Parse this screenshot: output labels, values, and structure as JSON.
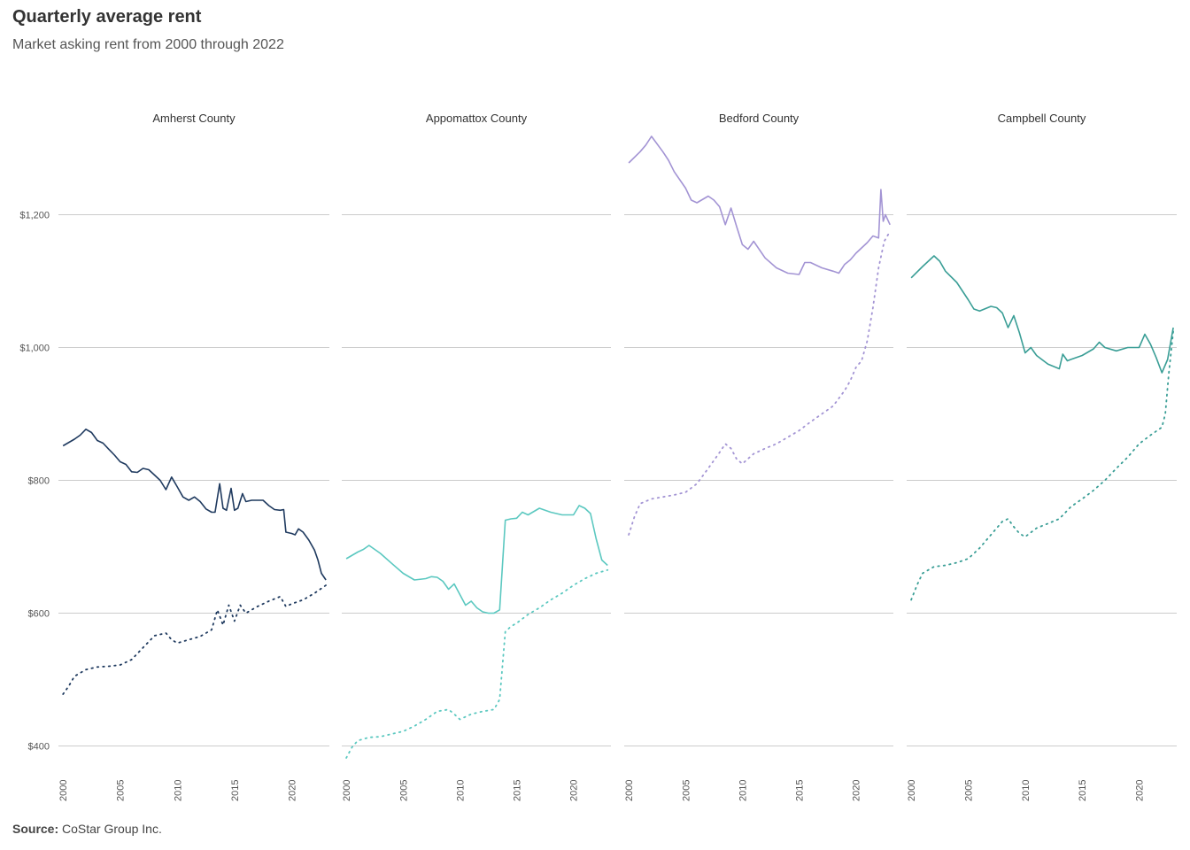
{
  "header": {
    "title": "Quarterly average rent",
    "subtitle": "Market asking rent from 2000 through 2022"
  },
  "footer": {
    "source_label": "Source:",
    "source_text": "CoStar Group Inc."
  },
  "chart_data": {
    "type": "line",
    "title": "Quarterly average rent",
    "subtitle": "Market asking rent from 2000 through 2022",
    "ylim": [
      370,
      1330
    ],
    "yticks": [
      400,
      600,
      800,
      1000,
      1200
    ],
    "ytick_labels": [
      "$400",
      "$600",
      "$800",
      "$1,000",
      "$1,200"
    ],
    "xlim": [
      1999.6,
      2023.3
    ],
    "xticks": [
      2000,
      2005,
      2010,
      2015,
      2020
    ],
    "xtick_labels": [
      "2000",
      "2005",
      "2010",
      "2015",
      "2020"
    ],
    "grid": true,
    "line_styles": [
      "solid",
      "dotted"
    ],
    "panels": [
      {
        "name": "Amherst County",
        "color": "#1f3a5f",
        "series": [
          {
            "style": "solid",
            "x": [
              2000,
              2001,
              2001.5,
              2002,
              2002.5,
              2003,
              2003.5,
              2004,
              2004.5,
              2005,
              2005.5,
              2006,
              2006.5,
              2007,
              2007.5,
              2008,
              2008.5,
              2009,
              2009.5,
              2010,
              2010.5,
              2011,
              2011.5,
              2012,
              2012.5,
              2013,
              2013.3,
              2013.7,
              2014,
              2014.3,
              2014.7,
              2015,
              2015.3,
              2015.7,
              2016,
              2016.5,
              2017,
              2017.5,
              2018,
              2018.5,
              2019,
              2019.3,
              2019.5,
              2020,
              2020.3,
              2020.6,
              2021,
              2021.5,
              2022,
              2022.3,
              2022.6,
              2023
            ],
            "y": [
              852,
              862,
              868,
              877,
              872,
              860,
              856,
              847,
              838,
              828,
              824,
              813,
              812,
              818,
              816,
              808,
              800,
              786,
              805,
              790,
              775,
              770,
              775,
              768,
              757,
              752,
              752,
              795,
              758,
              755,
              788,
              755,
              758,
              780,
              768,
              770,
              770,
              770,
              762,
              756,
              755,
              756,
              722,
              720,
              718,
              727,
              722,
              710,
              695,
              680,
              660,
              650
            ]
          },
          {
            "style": "dotted",
            "x": [
              2000,
              2000.5,
              2001,
              2002,
              2003,
              2004,
              2005,
              2006,
              2007,
              2008,
              2009,
              2009.5,
              2010,
              2011,
              2012,
              2013,
              2013.5,
              2014,
              2014.5,
              2015,
              2015.5,
              2016,
              2017,
              2018,
              2019,
              2019.5,
              2020,
              2021,
              2022,
              2023
            ],
            "y": [
              478,
              490,
              505,
              515,
              519,
              520,
              522,
              530,
              548,
              566,
              570,
              560,
              555,
              560,
              565,
              575,
              605,
              582,
              612,
              588,
              612,
              600,
              610,
              618,
              625,
              610,
              614,
              620,
              630,
              642
            ]
          }
        ]
      },
      {
        "name": "Appomattox County",
        "color": "#5bc8c0",
        "series": [
          {
            "style": "solid",
            "x": [
              2000,
              2001,
              2001.5,
              2002,
              2003,
              2004,
              2005,
              2006,
              2007,
              2007.5,
              2008,
              2008.5,
              2009,
              2009.5,
              2010,
              2010.5,
              2011,
              2011.5,
              2012,
              2012.5,
              2013,
              2013.5,
              2014,
              2014.5,
              2015,
              2015.5,
              2016,
              2017,
              2018,
              2019,
              2020,
              2020.5,
              2021,
              2021.5,
              2022,
              2022.5,
              2023
            ],
            "y": [
              682,
              692,
              696,
              702,
              690,
              675,
              660,
              650,
              652,
              655,
              654,
              648,
              636,
              644,
              628,
              612,
              618,
              608,
              602,
              600,
              600,
              605,
              740,
              742,
              743,
              752,
              748,
              758,
              752,
              748,
              748,
              762,
              758,
              750,
              712,
              680,
              672
            ]
          },
          {
            "style": "dotted",
            "x": [
              2000,
              2000.5,
              2001,
              2002,
              2003,
              2004,
              2005,
              2006,
              2007,
              2008,
              2009,
              2009.5,
              2010,
              2011,
              2012,
              2013,
              2013.5,
              2014,
              2014.5,
              2015,
              2016,
              2017,
              2018,
              2019,
              2020,
              2021,
              2022,
              2023
            ],
            "y": [
              382,
              398,
              408,
              413,
              414,
              418,
              422,
              430,
              440,
              452,
              455,
              448,
              440,
              448,
              452,
              455,
              470,
              572,
              580,
              585,
              598,
              608,
              620,
              630,
              642,
              652,
              660,
              665
            ]
          }
        ]
      },
      {
        "name": "Bedford County",
        "color": "#a394d4",
        "series": [
          {
            "style": "solid",
            "x": [
              2000,
              2001,
              2001.5,
              2002,
              2003,
              2003.5,
              2004,
              2005,
              2005.5,
              2006,
              2007,
              2007.5,
              2008,
              2008.5,
              2009,
              2009.5,
              2010,
              2010.5,
              2011,
              2012,
              2013,
              2014,
              2015,
              2015.5,
              2016,
              2017,
              2018,
              2018.5,
              2019,
              2019.5,
              2020,
              2020.5,
              2021,
              2021.5,
              2022,
              2022.2,
              2022.4,
              2022.6,
              2023
            ],
            "y": [
              1278,
              1295,
              1305,
              1318,
              1295,
              1282,
              1265,
              1240,
              1222,
              1218,
              1228,
              1222,
              1212,
              1185,
              1210,
              1182,
              1155,
              1148,
              1160,
              1135,
              1120,
              1112,
              1110,
              1128,
              1128,
              1120,
              1115,
              1112,
              1125,
              1132,
              1142,
              1150,
              1158,
              1168,
              1165,
              1238,
              1190,
              1200,
              1185
            ]
          },
          {
            "style": "dotted",
            "x": [
              2000,
              2000.5,
              2001,
              2002,
              2003,
              2004,
              2005,
              2006,
              2007,
              2008,
              2008.5,
              2009,
              2009.5,
              2010,
              2011,
              2012,
              2013,
              2014,
              2015,
              2016,
              2017,
              2018,
              2019,
              2019.5,
              2020,
              2020.5,
              2021,
              2021.5,
              2022,
              2022.5,
              2023
            ],
            "y": [
              718,
              745,
              765,
              772,
              775,
              778,
              782,
              795,
              818,
              842,
              855,
              848,
              832,
              825,
              840,
              848,
              855,
              865,
              875,
              888,
              900,
              912,
              935,
              950,
              970,
              980,
              1010,
              1060,
              1120,
              1160,
              1175
            ]
          }
        ]
      },
      {
        "name": "Campbell County",
        "color": "#3a9e96",
        "series": [
          {
            "style": "solid",
            "x": [
              2000,
              2001,
              2002,
              2002.5,
              2003,
              2004,
              2005,
              2005.5,
              2006,
              2007,
              2007.5,
              2008,
              2008.5,
              2009,
              2009.5,
              2010,
              2010.5,
              2011,
              2012,
              2013,
              2013.3,
              2013.7,
              2014,
              2015,
              2016,
              2016.5,
              2017,
              2018,
              2019,
              2020,
              2020.5,
              2021,
              2021.5,
              2022,
              2022.5,
              2023
            ],
            "y": [
              1105,
              1122,
              1138,
              1130,
              1115,
              1098,
              1072,
              1058,
              1055,
              1062,
              1060,
              1052,
              1030,
              1048,
              1022,
              992,
              1000,
              988,
              975,
              968,
              990,
              980,
              982,
              988,
              998,
              1008,
              1000,
              995,
              1000,
              1000,
              1020,
              1005,
              985,
              962,
              982,
              1030
            ]
          },
          {
            "style": "dotted",
            "x": [
              2000,
              2000.5,
              2001,
              2002,
              2003,
              2004,
              2005,
              2006,
              2007,
              2008,
              2008.5,
              2009,
              2009.5,
              2010,
              2011,
              2012,
              2013,
              2014,
              2015,
              2016,
              2017,
              2018,
              2019,
              2020,
              2021,
              2022,
              2022.3,
              2022.6,
              2023
            ],
            "y": [
              620,
              642,
              660,
              670,
              672,
              676,
              682,
              698,
              718,
              738,
              742,
              730,
              720,
              715,
              728,
              735,
              742,
              760,
              772,
              785,
              800,
              818,
              835,
              855,
              868,
              880,
              900,
              960,
              1025
            ]
          }
        ]
      }
    ]
  }
}
